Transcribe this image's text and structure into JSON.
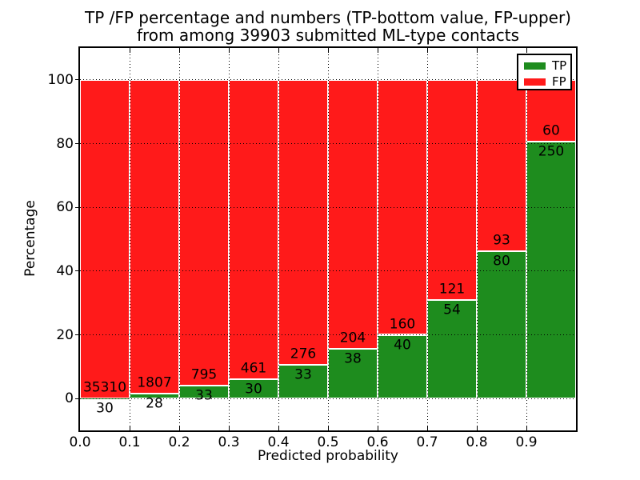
{
  "chart_data": {
    "type": "bar",
    "stacked": true,
    "normalized_to_percent": true,
    "title": "TP /FP percentage and numbers (TP-bottom value, FP-upper) from among 39903 submitted ML-type contacts",
    "title_line1": "TP /FP percentage and numbers (TP-bottom value, FP-upper)",
    "title_line2": "from among 39903 submitted ML-type contacts",
    "total_contacts": 39903,
    "xlabel": "Predicted probability",
    "ylabel": "Percentage",
    "xlim": [
      0.0,
      1.0
    ],
    "ylim": [
      -10,
      110
    ],
    "x_tick_values": [
      0.0,
      0.1,
      0.2,
      0.3,
      0.4,
      0.5,
      0.6,
      0.7,
      0.8,
      0.9
    ],
    "x_tick_labels": [
      "0.0",
      "0.1",
      "0.2",
      "0.3",
      "0.4",
      "0.5",
      "0.6",
      "0.7",
      "0.8",
      "0.9"
    ],
    "y_tick_values": [
      0,
      20,
      40,
      60,
      80,
      100
    ],
    "y_tick_labels": [
      "0",
      "20",
      "40",
      "60",
      "80",
      "100"
    ],
    "grid": "dotted",
    "legend_position": "upper-right",
    "series": [
      {
        "name": "TP",
        "color": "#1e8c1e"
      },
      {
        "name": "FP",
        "color": "#ff1a1a"
      }
    ],
    "bins": [
      {
        "x0": 0.0,
        "x1": 0.1,
        "tp": 30,
        "fp": 35310,
        "tp_pct": 0.08
      },
      {
        "x0": 0.1,
        "x1": 0.2,
        "tp": 28,
        "fp": 1807,
        "tp_pct": 1.53
      },
      {
        "x0": 0.2,
        "x1": 0.3,
        "tp": 33,
        "fp": 795,
        "tp_pct": 3.99
      },
      {
        "x0": 0.3,
        "x1": 0.4,
        "tp": 30,
        "fp": 461,
        "tp_pct": 6.11
      },
      {
        "x0": 0.4,
        "x1": 0.5,
        "tp": 33,
        "fp": 276,
        "tp_pct": 10.68
      },
      {
        "x0": 0.5,
        "x1": 0.6,
        "tp": 38,
        "fp": 204,
        "tp_pct": 15.7
      },
      {
        "x0": 0.6,
        "x1": 0.7,
        "tp": 40,
        "fp": 160,
        "tp_pct": 20.0
      },
      {
        "x0": 0.7,
        "x1": 0.8,
        "tp": 54,
        "fp": 121,
        "tp_pct": 30.86
      },
      {
        "x0": 0.8,
        "x1": 0.9,
        "tp": 80,
        "fp": 93,
        "tp_pct": 46.24
      },
      {
        "x0": 0.9,
        "x1": 1.0,
        "tp": 250,
        "fp": 60,
        "tp_pct": 80.65
      }
    ]
  }
}
